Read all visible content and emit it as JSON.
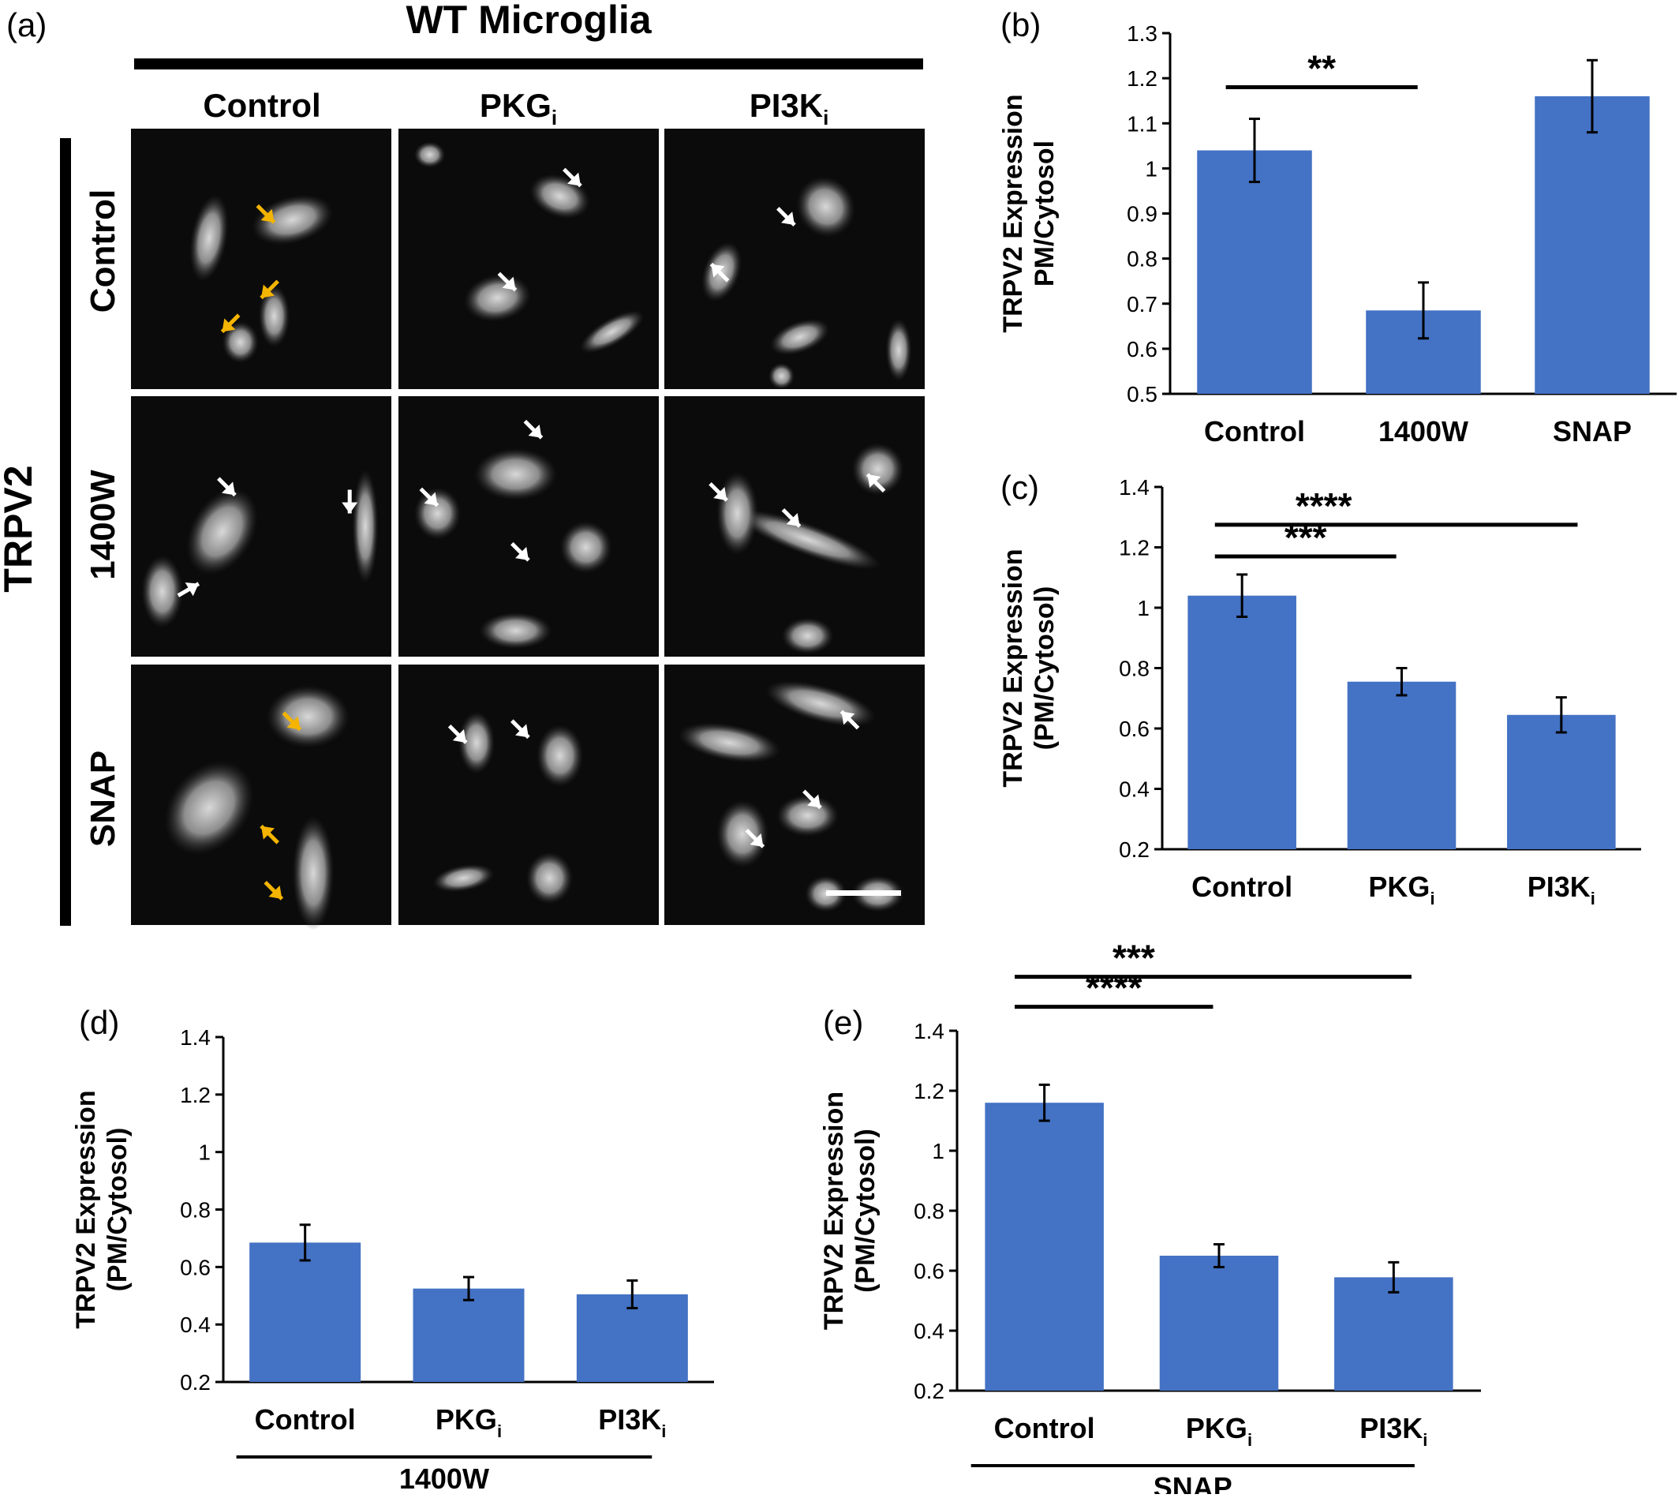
{
  "panel_a": {
    "letter": "(a)",
    "title": "WT Microglia",
    "side_label": "TRPV2",
    "columns": [
      {
        "main": "Control",
        "sub": ""
      },
      {
        "main": "PKG",
        "sub": "i"
      },
      {
        "main": "PI3K",
        "sub": "i"
      }
    ],
    "rows": [
      "Control",
      "1400W",
      "SNAP"
    ],
    "arrow_colors": {
      "orange": "#f4b400",
      "white": "#ffffff"
    }
  },
  "chart_data": [
    {
      "panel": "(b)",
      "type": "bar",
      "categories": [
        {
          "main": "Control",
          "sub": ""
        },
        {
          "main": "1400W",
          "sub": ""
        },
        {
          "main": "SNAP",
          "sub": ""
        }
      ],
      "values": [
        1.04,
        0.685,
        1.16
      ],
      "errors": [
        0.07,
        0.062,
        0.08
      ],
      "ylabel": [
        "TRPV2 Expression",
        "PM/Cytosol"
      ],
      "ylim": [
        0.5,
        1.3
      ],
      "yticks": [
        0.5,
        0.6,
        0.7,
        0.8,
        0.9,
        1,
        1.1,
        1.2,
        1.3
      ],
      "group_label": "",
      "significance": [
        {
          "from": 0,
          "to": 1,
          "label": "**",
          "level": 1
        }
      ],
      "bar_color": "#4472c4"
    },
    {
      "panel": "(c)",
      "type": "bar",
      "categories": [
        {
          "main": "Control",
          "sub": ""
        },
        {
          "main": "PKG",
          "sub": "i"
        },
        {
          "main": "PI3K",
          "sub": "i"
        }
      ],
      "values": [
        1.04,
        0.755,
        0.645
      ],
      "errors": [
        0.07,
        0.045,
        0.058
      ],
      "ylabel": [
        "TRPV2 Expression",
        "(PM/Cytosol)"
      ],
      "ylim": [
        0.2,
        1.4
      ],
      "yticks": [
        0.2,
        0.4,
        0.6,
        0.8,
        1,
        1.2,
        1.4
      ],
      "group_label": "",
      "significance": [
        {
          "from": 0,
          "to": 1,
          "label": "***",
          "level": 1
        },
        {
          "from": 0,
          "to": 2,
          "label": "****",
          "level": 2
        }
      ],
      "bar_color": "#4472c4"
    },
    {
      "panel": "(d)",
      "type": "bar",
      "categories": [
        {
          "main": "Control",
          "sub": ""
        },
        {
          "main": "PKG",
          "sub": "i"
        },
        {
          "main": "PI3K",
          "sub": "i"
        }
      ],
      "values": [
        0.685,
        0.525,
        0.505
      ],
      "errors": [
        0.062,
        0.04,
        0.048
      ],
      "ylabel": [
        "TRPV2 Expression",
        "(PM/Cytosol)"
      ],
      "ylim": [
        0.2,
        1.4
      ],
      "yticks": [
        0.2,
        0.4,
        0.6,
        0.8,
        1,
        1.2,
        1.4
      ],
      "group_label": "1400W",
      "significance": [],
      "bar_color": "#4472c4"
    },
    {
      "panel": "(e)",
      "type": "bar",
      "categories": [
        {
          "main": "Control",
          "sub": ""
        },
        {
          "main": "PKG",
          "sub": "i"
        },
        {
          "main": "PI3K",
          "sub": "i"
        }
      ],
      "values": [
        1.16,
        0.65,
        0.578
      ],
      "errors": [
        0.06,
        0.038,
        0.05
      ],
      "ylabel": [
        "TRPV2 Expression",
        "(PM/Cytosol)"
      ],
      "ylim": [
        0.2,
        1.4
      ],
      "yticks": [
        0.2,
        0.4,
        0.6,
        0.8,
        1,
        1.2,
        1.4
      ],
      "group_label": "SNAP",
      "significance": [
        {
          "from": 0,
          "to": 1,
          "label": "****",
          "level": 1
        },
        {
          "from": 0,
          "to": 2,
          "label": "***",
          "level": 2
        }
      ],
      "bar_color": "#4472c4"
    }
  ]
}
